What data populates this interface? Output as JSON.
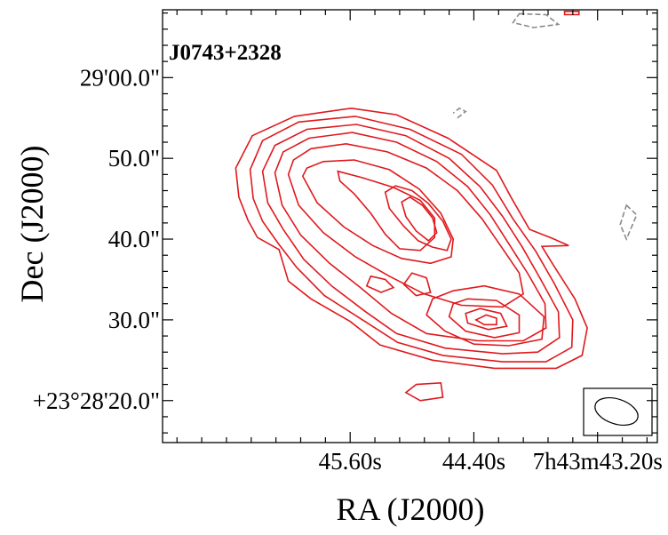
{
  "chart_data": {
    "type": "contour",
    "source_label": "J0743+2328",
    "xlabel": "RA (J2000)",
    "ylabel": "Dec (J2000)",
    "x_ticks": [
      "45.60s",
      "44.40s",
      "7h43m43.20s"
    ],
    "y_ticks": [
      "+23°28'20.0\"",
      "30.0\"",
      "40.0\"",
      "50.0\"",
      "29'00.0\""
    ],
    "x_tick_values_s": [
      45.6,
      44.4,
      43.2
    ],
    "y_tick_values_arcsec": [
      20,
      30,
      40,
      50,
      60
    ],
    "xlim_s": [
      47.42,
      42.62
    ],
    "ylim_arcsec": [
      14.8,
      68.4
    ],
    "contour_colors": {
      "positive": "#e0191d",
      "negative": "#8a8a8a"
    },
    "beam": {
      "shape": "ellipse",
      "color": "#000000"
    },
    "positive_contours": [
      {
        "level": 1,
        "points": [
          [
            46.71,
            48.8
          ],
          [
            46.68,
            45.2
          ],
          [
            46.59,
            42.3
          ],
          [
            46.5,
            40.2
          ],
          [
            46.29,
            38.7
          ],
          [
            46.2,
            34.8
          ],
          [
            45.98,
            32.6
          ],
          [
            45.6,
            29.8
          ],
          [
            45.31,
            26.9
          ],
          [
            44.8,
            25.0
          ],
          [
            44.2,
            24.0
          ],
          [
            43.6,
            24.0
          ],
          [
            43.35,
            25.6
          ],
          [
            43.3,
            29.0
          ],
          [
            43.42,
            32.6
          ],
          [
            43.63,
            36.8
          ],
          [
            43.74,
            39.1
          ],
          [
            43.48,
            39.2
          ],
          [
            43.64,
            40.1
          ],
          [
            43.86,
            41.2
          ],
          [
            44.04,
            45.2
          ],
          [
            44.18,
            48.5
          ],
          [
            44.65,
            52.5
          ],
          [
            45.15,
            55.4
          ],
          [
            45.59,
            56.2
          ],
          [
            46.14,
            55.2
          ],
          [
            46.55,
            52.8
          ],
          [
            46.71,
            48.8
          ]
        ]
      },
      {
        "level": 2,
        "points": [
          [
            46.57,
            48.6
          ],
          [
            46.54,
            45.0
          ],
          [
            46.45,
            42.2
          ],
          [
            46.3,
            39.5
          ],
          [
            46.12,
            36.5
          ],
          [
            45.85,
            33.0
          ],
          [
            45.48,
            30.0
          ],
          [
            45.14,
            27.2
          ],
          [
            44.7,
            25.6
          ],
          [
            44.12,
            24.8
          ],
          [
            43.7,
            24.8
          ],
          [
            43.45,
            26.6
          ],
          [
            43.44,
            30.0
          ],
          [
            43.62,
            34.5
          ],
          [
            43.8,
            38.5
          ],
          [
            44.02,
            42.5
          ],
          [
            44.22,
            46.7
          ],
          [
            44.52,
            50.5
          ],
          [
            45.02,
            53.6
          ],
          [
            45.55,
            55.2
          ],
          [
            46.1,
            54.5
          ],
          [
            46.45,
            52.2
          ],
          [
            46.57,
            48.6
          ]
        ]
      },
      {
        "level": 3,
        "points": [
          [
            46.45,
            48.4
          ],
          [
            46.4,
            44.5
          ],
          [
            46.25,
            41.2
          ],
          [
            46.05,
            37.5
          ],
          [
            45.78,
            34.2
          ],
          [
            45.45,
            31.0
          ],
          [
            45.15,
            28.3
          ],
          [
            44.68,
            26.5
          ],
          [
            44.12,
            25.8
          ],
          [
            43.78,
            26.0
          ],
          [
            43.57,
            27.8
          ],
          [
            43.58,
            31.0
          ],
          [
            43.76,
            35.2
          ],
          [
            43.93,
            39.0
          ],
          [
            44.12,
            42.8
          ],
          [
            44.34,
            46.5
          ],
          [
            44.64,
            50.0
          ],
          [
            45.06,
            52.8
          ],
          [
            45.54,
            54.2
          ],
          [
            46.02,
            53.6
          ],
          [
            46.33,
            51.6
          ],
          [
            46.45,
            48.4
          ]
        ]
      },
      {
        "level": 4,
        "points": [
          [
            46.33,
            48.2
          ],
          [
            46.26,
            44.2
          ],
          [
            46.08,
            40.5
          ],
          [
            45.8,
            37.0
          ],
          [
            45.5,
            34.0
          ],
          [
            45.2,
            30.8
          ],
          [
            44.86,
            28.3
          ],
          [
            44.36,
            27.4
          ],
          [
            43.92,
            27.4
          ],
          [
            43.7,
            29.0
          ],
          [
            43.71,
            32.0
          ],
          [
            43.87,
            35.6
          ],
          [
            44.05,
            39.2
          ],
          [
            44.24,
            43.0
          ],
          [
            44.46,
            46.5
          ],
          [
            44.76,
            49.6
          ],
          [
            45.15,
            52.0
          ],
          [
            45.58,
            53.2
          ],
          [
            46.0,
            52.5
          ],
          [
            46.25,
            50.8
          ],
          [
            46.33,
            48.2
          ]
        ]
      },
      {
        "level": 5,
        "points": [
          [
            46.2,
            48.0
          ],
          [
            46.1,
            44.2
          ],
          [
            45.86,
            40.8
          ],
          [
            45.55,
            37.8
          ],
          [
            45.22,
            35.4
          ],
          [
            44.88,
            33.2
          ],
          [
            44.52,
            31.8
          ],
          [
            44.12,
            31.6
          ],
          [
            43.92,
            33.2
          ],
          [
            43.96,
            35.8
          ],
          [
            44.12,
            38.8
          ],
          [
            44.32,
            42.5
          ],
          [
            44.56,
            46.0
          ],
          [
            44.86,
            48.8
          ],
          [
            45.24,
            50.8
          ],
          [
            45.64,
            51.8
          ],
          [
            45.98,
            51.2
          ],
          [
            46.15,
            49.8
          ],
          [
            46.2,
            48.0
          ]
        ]
      },
      {
        "level": 6,
        "points": [
          [
            46.06,
            47.8
          ],
          [
            45.92,
            44.5
          ],
          [
            45.66,
            41.5
          ],
          [
            45.38,
            39.2
          ],
          [
            45.1,
            37.6
          ],
          [
            44.82,
            37.0
          ],
          [
            44.62,
            37.8
          ],
          [
            44.6,
            40.0
          ],
          [
            44.72,
            43.2
          ],
          [
            44.93,
            46.2
          ],
          [
            45.22,
            48.6
          ],
          [
            45.56,
            49.8
          ],
          [
            45.86,
            49.6
          ],
          [
            46.02,
            48.8
          ],
          [
            46.06,
            47.8
          ]
        ]
      },
      {
        "level": 7,
        "points": [
          [
            45.72,
            48.4
          ],
          [
            45.48,
            47.6
          ],
          [
            45.18,
            46.4
          ],
          [
            44.92,
            44.8
          ],
          [
            44.78,
            42.6
          ],
          [
            44.78,
            40.2
          ],
          [
            44.92,
            38.6
          ],
          [
            45.12,
            38.8
          ],
          [
            45.26,
            40.6
          ],
          [
            45.4,
            43.2
          ],
          [
            45.56,
            45.6
          ],
          [
            45.7,
            47.2
          ],
          [
            45.72,
            48.4
          ]
        ]
      },
      {
        "level": 8,
        "points": [
          [
            44.8,
            39.0
          ],
          [
            44.66,
            38.6
          ],
          [
            44.62,
            40.0
          ],
          [
            44.7,
            42.2
          ],
          [
            44.84,
            44.4
          ],
          [
            45.0,
            46.0
          ],
          [
            45.16,
            46.6
          ],
          [
            45.26,
            45.8
          ],
          [
            45.22,
            43.8
          ],
          [
            45.08,
            41.6
          ],
          [
            44.94,
            39.8
          ],
          [
            44.8,
            39.0
          ]
        ]
      },
      {
        "level": 9,
        "points": [
          [
            44.84,
            39.8
          ],
          [
            44.76,
            40.8
          ],
          [
            44.8,
            42.6
          ],
          [
            44.9,
            44.2
          ],
          [
            45.02,
            45.2
          ],
          [
            45.1,
            44.6
          ],
          [
            45.06,
            42.8
          ],
          [
            44.96,
            41.0
          ],
          [
            44.84,
            39.8
          ]
        ]
      },
      {
        "level": 5,
        "points": [
          [
            44.6,
            33.6
          ],
          [
            44.3,
            34.2
          ],
          [
            43.96,
            33.2
          ],
          [
            43.72,
            30.4
          ],
          [
            43.74,
            27.6
          ],
          [
            44.06,
            26.8
          ],
          [
            44.4,
            27.0
          ],
          [
            44.68,
            28.6
          ],
          [
            44.86,
            30.6
          ],
          [
            44.8,
            32.6
          ],
          [
            44.6,
            33.6
          ]
        ]
      },
      {
        "level": 6,
        "points": [
          [
            44.46,
            32.6
          ],
          [
            44.18,
            32.4
          ],
          [
            43.96,
            30.6
          ],
          [
            43.96,
            28.4
          ],
          [
            44.2,
            27.8
          ],
          [
            44.48,
            28.6
          ],
          [
            44.64,
            30.4
          ],
          [
            44.6,
            32.0
          ],
          [
            44.46,
            32.6
          ]
        ]
      },
      {
        "level": 7,
        "points": [
          [
            44.34,
            31.4
          ],
          [
            44.14,
            30.8
          ],
          [
            44.08,
            29.2
          ],
          [
            44.26,
            28.8
          ],
          [
            44.46,
            29.6
          ],
          [
            44.48,
            30.8
          ],
          [
            44.34,
            31.4
          ]
        ]
      },
      {
        "level": 8,
        "points": [
          [
            44.28,
            30.6
          ],
          [
            44.18,
            30.2
          ],
          [
            44.18,
            29.4
          ],
          [
            44.3,
            29.4
          ],
          [
            44.38,
            30.0
          ],
          [
            44.28,
            30.6
          ]
        ]
      },
      {
        "level": 5,
        "points": [
          [
            45.4,
            35.4
          ],
          [
            45.26,
            35.0
          ],
          [
            45.18,
            34.0
          ],
          [
            45.3,
            33.4
          ],
          [
            45.44,
            34.2
          ],
          [
            45.4,
            35.4
          ]
        ]
      },
      {
        "level": 5,
        "points": [
          [
            45.0,
            35.8
          ],
          [
            44.86,
            35.2
          ],
          [
            44.82,
            33.4
          ],
          [
            44.96,
            33.0
          ],
          [
            45.08,
            34.4
          ],
          [
            45.0,
            35.8
          ]
        ]
      },
      {
        "level": 1,
        "points": [
          [
            44.96,
            22.0
          ],
          [
            44.72,
            22.2
          ],
          [
            44.7,
            20.4
          ],
          [
            44.92,
            20.0
          ],
          [
            45.06,
            21.0
          ],
          [
            44.96,
            22.0
          ]
        ]
      },
      {
        "level": 1,
        "points": [
          [
            43.52,
            68.2
          ],
          [
            43.38,
            68.2
          ],
          [
            43.38,
            67.8
          ],
          [
            43.52,
            67.8
          ],
          [
            43.52,
            68.2
          ]
        ]
      }
    ],
    "negative_contours": [
      {
        "level": -1,
        "points": [
          [
            43.96,
            67.9
          ],
          [
            43.7,
            67.8
          ],
          [
            43.58,
            66.6
          ],
          [
            43.82,
            66.2
          ],
          [
            44.02,
            66.8
          ],
          [
            43.96,
            67.9
          ]
        ]
      },
      {
        "level": -1,
        "points": [
          [
            42.92,
            44.2
          ],
          [
            42.82,
            43.0
          ],
          [
            42.92,
            40.0
          ],
          [
            42.98,
            41.8
          ],
          [
            42.92,
            44.2
          ]
        ]
      },
      {
        "level": -1,
        "points": [
          [
            44.56,
            55.0
          ],
          [
            44.48,
            55.8
          ],
          [
            44.54,
            56.2
          ],
          [
            44.6,
            55.6
          ]
        ]
      }
    ]
  }
}
